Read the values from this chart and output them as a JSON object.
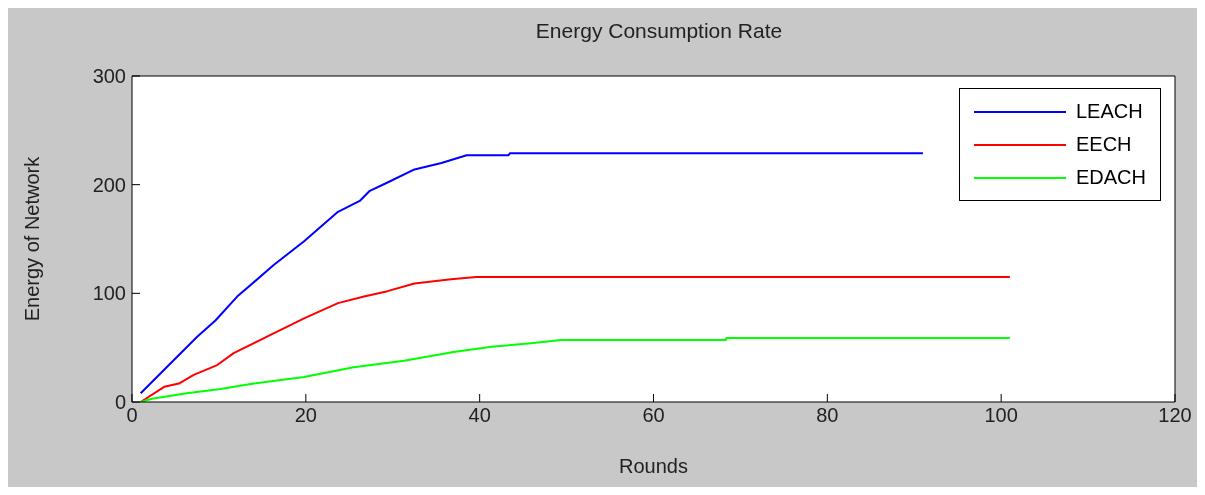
{
  "chart_data": {
    "type": "line",
    "title": "Energy Consumption Rate",
    "xlabel": "Rounds",
    "ylabel": "Energy of Network",
    "xlim": [
      0,
      120
    ],
    "xticks": [
      0,
      20,
      40,
      60,
      80,
      100,
      120
    ],
    "ylim": [
      0,
      300
    ],
    "yticks": [
      0,
      100,
      200,
      300
    ],
    "grid": false,
    "legend": "top right",
    "marker": "none",
    "line_style": "solid",
    "series": [
      {
        "name": "LEACH",
        "color": "#0000ff",
        "x": [
          1,
          3.5,
          7.5,
          9.6,
          12.1,
          16.3,
          19.8,
          23.7,
          26.2,
          27.3,
          29.4,
          32.5,
          35.6,
          38.5,
          43.3,
          43.5,
          91
        ],
        "values": [
          8,
          28,
          60,
          75,
          97,
          126,
          148,
          175,
          185,
          194,
          202,
          214,
          220,
          227,
          227,
          229,
          229
        ]
      },
      {
        "name": "EECH",
        "color": "#ff0000",
        "x": [
          1,
          3.7,
          5.4,
          7.1,
          9.8,
          11.7,
          16,
          19.8,
          23.7,
          26.7,
          29.4,
          32.5,
          36.7,
          39.6,
          101
        ],
        "values": [
          0,
          14,
          17,
          25,
          34,
          45,
          62,
          77,
          91,
          97,
          102,
          109,
          113,
          115,
          115
        ]
      },
      {
        "name": "EDACH",
        "color": "#00ff00",
        "x": [
          1,
          2.3,
          6.3,
          10.2,
          14,
          19.8,
          25.5,
          31.3,
          37,
          41.6,
          45.9,
          49.4,
          68.3,
          68.4,
          101
        ],
        "values": [
          0,
          3,
          8,
          12,
          17,
          23,
          32,
          38,
          46,
          51,
          54,
          57,
          57,
          59,
          59
        ]
      }
    ]
  }
}
